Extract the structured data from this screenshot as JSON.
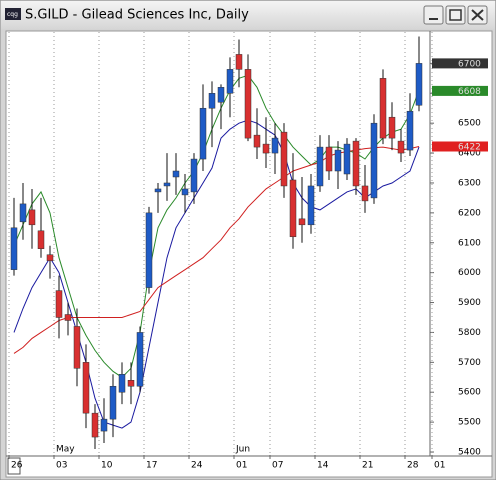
{
  "window_title": "S.GILD - Gilead Sciences Inc, Daily",
  "chart_data": {
    "type": "candlestick",
    "categories": [
      "26",
      null,
      null,
      null,
      null,
      "03",
      null,
      null,
      null,
      null,
      "10",
      null,
      null,
      null,
      null,
      "17",
      null,
      null,
      null,
      null,
      "24",
      null,
      null,
      null,
      null,
      "01",
      null,
      null,
      null,
      "07",
      null,
      null,
      null,
      null,
      "14",
      null,
      null,
      null,
      null,
      "21",
      null,
      null,
      null,
      null,
      "28",
      null,
      null,
      "01"
    ],
    "months": [
      null,
      null,
      null,
      null,
      null,
      "May",
      null,
      null,
      null,
      null,
      null,
      null,
      null,
      null,
      null,
      null,
      null,
      null,
      null,
      null,
      null,
      null,
      null,
      null,
      null,
      "Jun",
      null,
      null,
      null,
      null,
      null,
      null,
      null,
      null,
      null,
      null,
      null,
      null,
      null,
      null,
      null,
      null,
      null,
      null,
      null,
      null,
      null,
      null
    ],
    "open": [
      6010,
      6170,
      6210,
      6140,
      6060,
      5940,
      5860,
      5820,
      5700,
      5530,
      5470,
      5510,
      5600,
      5640,
      5620,
      5950,
      6270,
      6290,
      6320,
      6260,
      6270,
      6380,
      6550,
      6570,
      6600,
      6730,
      6680,
      6460,
      6430,
      6400,
      6470,
      6310,
      6180,
      6160,
      6290,
      6420,
      6340,
      6330,
      6440,
      6290,
      6250,
      6650,
      6520,
      6440,
      6410,
      6560,
      null,
      null
    ],
    "high": [
      6250,
      6300,
      6280,
      6250,
      6090,
      5990,
      5900,
      5880,
      5760,
      5560,
      5580,
      5660,
      5700,
      5700,
      5820,
      6220,
      6300,
      6400,
      6400,
      6330,
      6400,
      6630,
      6640,
      6630,
      6720,
      6780,
      6730,
      6550,
      6520,
      6500,
      6500,
      6400,
      6320,
      6330,
      6460,
      6460,
      6440,
      6450,
      6450,
      6360,
      6530,
      6680,
      6570,
      6480,
      6600,
      6790,
      null,
      null
    ],
    "low": [
      5990,
      6110,
      6080,
      6050,
      5980,
      5780,
      5790,
      5620,
      5480,
      5410,
      5430,
      5450,
      5560,
      5560,
      5600,
      5930,
      6200,
      6240,
      6260,
      6200,
      6230,
      6340,
      6420,
      6480,
      6520,
      6620,
      6440,
      6380,
      6350,
      6330,
      6250,
      6080,
      6100,
      6130,
      6270,
      6310,
      6280,
      6310,
      6260,
      6200,
      6230,
      6430,
      6410,
      6370,
      6390,
      6540,
      null,
      null
    ],
    "close": [
      6150,
      6230,
      6160,
      6080,
      6040,
      5850,
      5840,
      5680,
      5530,
      5450,
      5510,
      5620,
      5660,
      5620,
      5800,
      6200,
      6280,
      6300,
      6340,
      6280,
      6380,
      6550,
      6600,
      6620,
      6680,
      6680,
      6450,
      6420,
      6400,
      6450,
      6290,
      6120,
      6160,
      6290,
      6420,
      6340,
      6410,
      6430,
      6290,
      6240,
      6500,
      6450,
      6450,
      6400,
      6540,
      6700,
      null,
      null
    ],
    "up_color": "#1e5bc6",
    "down_color": "#d83030",
    "series": [
      {
        "color": "#2a8a2a",
        "values": [
          6090,
          6160,
          6230,
          6270,
          6200,
          6050,
          5950,
          5850,
          5790,
          5740,
          5700,
          5670,
          5650,
          5680,
          5800,
          6000,
          6150,
          6210,
          6250,
          6300,
          6340,
          6400,
          6480,
          6550,
          6610,
          6650,
          6660,
          6620,
          6550,
          6500,
          6460,
          6420,
          6390,
          6360,
          6380,
          6420,
          6420,
          6410,
          6400,
          6380,
          6420,
          6450,
          6470,
          6480,
          6530,
          6610,
          null,
          null
        ]
      },
      {
        "color": "#1a1aa0",
        "values": [
          5800,
          5880,
          5950,
          6000,
          6050,
          6000,
          5900,
          5800,
          5700,
          5580,
          5500,
          5490,
          5480,
          5500,
          5600,
          5750,
          5900,
          6050,
          6150,
          6200,
          6250,
          6300,
          6350,
          6450,
          6480,
          6500,
          6510,
          6500,
          6480,
          6460,
          6400,
          6300,
          6250,
          6220,
          6210,
          6230,
          6250,
          6270,
          6280,
          6250,
          6270,
          6290,
          6300,
          6320,
          6340,
          6420,
          null,
          null
        ]
      },
      {
        "color": "#d02020",
        "values": [
          5730,
          5750,
          5780,
          5800,
          5820,
          5840,
          5850,
          5850,
          5850,
          5850,
          5850,
          5850,
          5850,
          5860,
          5870,
          5910,
          5950,
          5970,
          5990,
          6010,
          6030,
          6050,
          6080,
          6110,
          6150,
          6180,
          6220,
          6250,
          6280,
          6300,
          6320,
          6340,
          6350,
          6360,
          6370,
          6390,
          6400,
          6405,
          6410,
          6415,
          6418,
          6420,
          6415,
          6410,
          6415,
          6422,
          null,
          null
        ]
      }
    ],
    "markers": [
      {
        "value": 6700,
        "color": "#333333"
      },
      {
        "value": 6608,
        "color": "#2a8a2a"
      },
      {
        "value": 6422,
        "color": "#e02020"
      }
    ],
    "ylim": [
      5390,
      6805
    ],
    "yticks": [
      5400,
      5500,
      5600,
      5700,
      5800,
      5900,
      6000,
      6100,
      6200,
      6300,
      6400,
      6500,
      6600,
      6700
    ],
    "grid": true
  }
}
